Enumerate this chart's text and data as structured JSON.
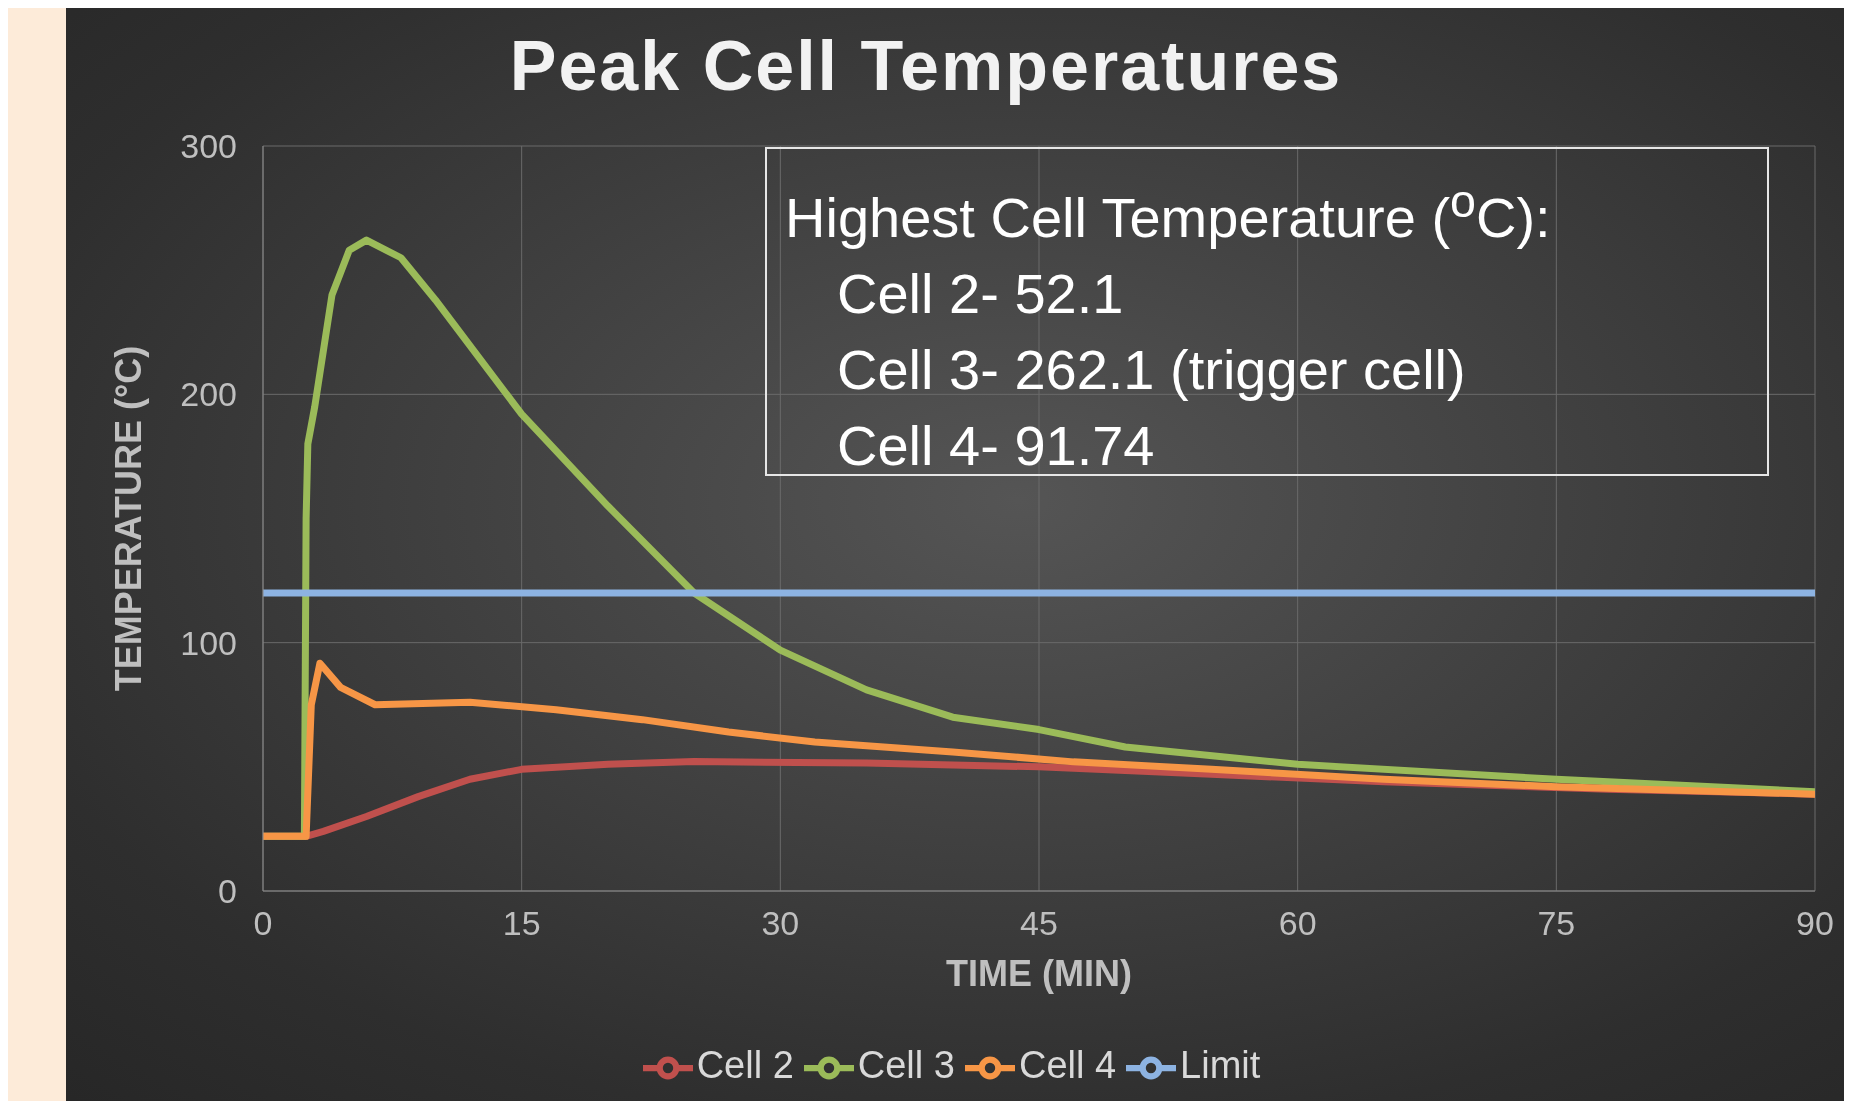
{
  "chart_data": {
    "type": "line",
    "title": "Peak Cell Temperatures",
    "xlabel": "TIME (MIN)",
    "ylabel": "TEMPERATURE (°C)",
    "annotations": [
      "Highest Cell Temperature ($^{o}$C):",
      "Cell 2- 52.1",
      "Cell 3- 262.1 (trigger cell)",
      "Cell 4- 91.74"
    ],
    "xlim": [
      0,
      90
    ],
    "xticks": [
      0,
      15,
      30,
      45,
      60,
      75,
      90
    ],
    "ylim": [
      0,
      300
    ],
    "yticks": [
      0,
      100,
      200,
      300
    ],
    "grid": true,
    "legend": "bottom",
    "marker": "none",
    "line_style": "solid",
    "series": [
      {
        "name": "Cell 2",
        "color": "#c0504d",
        "x": [
          0,
          2.5,
          3.5,
          6,
          9,
          12,
          15,
          20,
          25,
          35,
          45,
          55,
          65,
          78,
          90
        ],
        "values": [
          22,
          22,
          24,
          30,
          38,
          45,
          49,
          51,
          52.1,
          51.5,
          50,
          47,
          44,
          41,
          39
        ]
      },
      {
        "name": "Cell 3",
        "color": "#9bbb59",
        "x": [
          0,
          2.4,
          2.5,
          2.6,
          3,
          4,
          5,
          6,
          8,
          10,
          15,
          20,
          25,
          30,
          35,
          40,
          45,
          50,
          60,
          75,
          90
        ],
        "values": [
          22,
          22,
          150,
          180,
          195,
          240,
          258,
          262.1,
          255,
          238,
          192,
          155,
          120,
          97,
          81,
          70,
          65,
          58,
          51,
          45,
          40
        ]
      },
      {
        "name": "Cell 4",
        "color": "#f79646",
        "x": [
          0,
          2.5,
          2.8,
          3.3,
          4.5,
          6.5,
          12,
          17,
          22,
          27,
          32,
          40,
          47,
          55,
          65,
          75,
          90
        ],
        "values": [
          22,
          22,
          75,
          91.74,
          82,
          75,
          76,
          73,
          69,
          64,
          60,
          56,
          52,
          49,
          45,
          42,
          39
        ]
      },
      {
        "name": "Limit",
        "color": "#8db3e2",
        "x": [
          0,
          90
        ],
        "values": [
          120,
          120
        ]
      }
    ]
  }
}
